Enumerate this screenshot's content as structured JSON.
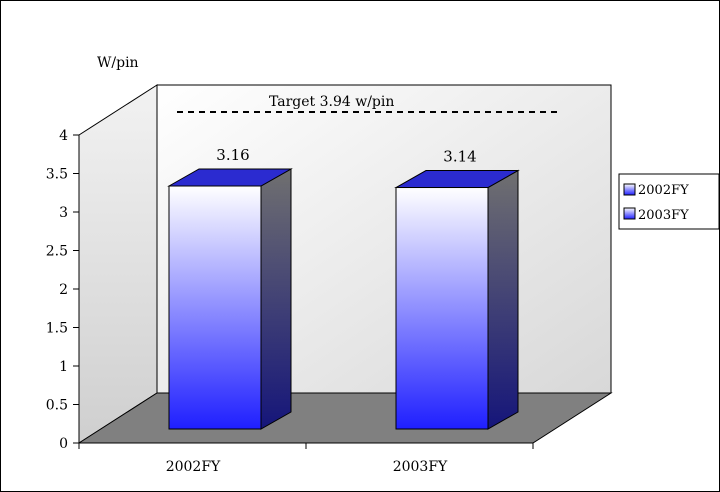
{
  "chart_data": {
    "type": "bar",
    "ylabel": "W/pin",
    "categories": [
      "2002FY",
      "2003FY"
    ],
    "values": [
      3.16,
      3.14
    ],
    "data_labels": [
      "3.16",
      "3.14"
    ],
    "ylim": [
      0,
      4
    ],
    "yticks": [
      "0",
      "0.5",
      "1",
      "1.5",
      "2",
      "2.5",
      "3",
      "3.5",
      "4"
    ],
    "target": {
      "value": 3.94,
      "label": "Target 3.94 w/pin"
    },
    "legend": {
      "position": "right",
      "entries": [
        "2002FY",
        "2003FY"
      ]
    },
    "style": "3d-clustered-column",
    "gridlines": false
  },
  "colors": {
    "bar_top": "#ffffff",
    "bar_bottom": "#1f1fff",
    "bar_side": "#1a1a6e",
    "bar_cap": "#2b2bd0",
    "walls": "#eeeeee",
    "floor": "#808080",
    "target_line": "#000000"
  }
}
